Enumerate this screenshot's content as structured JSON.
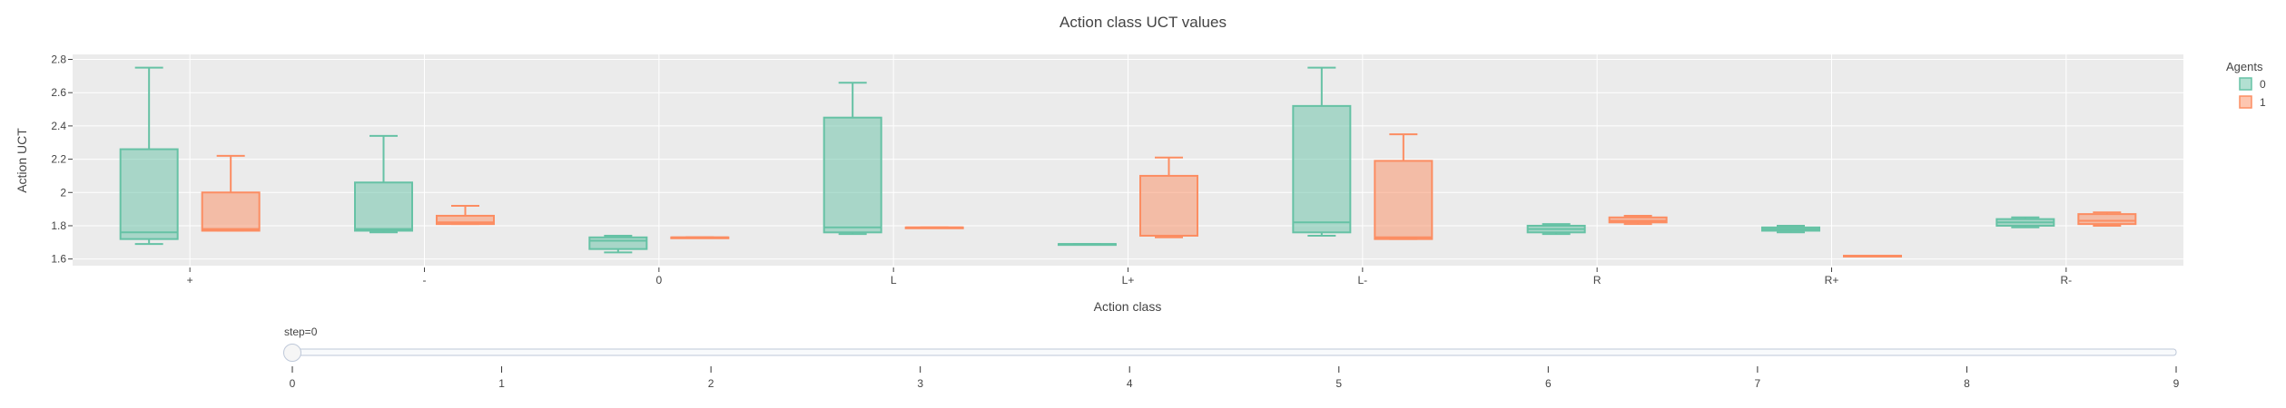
{
  "chart_data": {
    "type": "box",
    "title": "Action class UCT values",
    "xlabel": "Action class",
    "ylabel": "Action UCT",
    "ylim": [
      1.56,
      2.83
    ],
    "yticks": [
      1.6,
      1.8,
      2,
      2.2,
      2.4,
      2.6,
      2.8
    ],
    "ytick_labels": [
      "1.6",
      "1.8",
      "2",
      "2.2",
      "2.4",
      "2.6",
      "2.8"
    ],
    "categories": [
      "+",
      "-",
      "0",
      "L",
      "L+",
      "L-",
      "R",
      "R+",
      "R-"
    ],
    "grid": true,
    "legend": {
      "title": "Agents",
      "position": "top-right"
    },
    "series": [
      {
        "name": "0",
        "color": "#66c2a5",
        "boxes": [
          {
            "min": 1.69,
            "q1": 1.72,
            "median": 1.76,
            "q3": 2.26,
            "max": 2.75
          },
          {
            "min": 1.76,
            "q1": 1.77,
            "median": 1.78,
            "q3": 2.06,
            "max": 2.34
          },
          {
            "min": 1.64,
            "q1": 1.66,
            "median": 1.71,
            "q3": 1.73,
            "max": 1.74
          },
          {
            "min": 1.75,
            "q1": 1.76,
            "median": 1.79,
            "q3": 2.45,
            "max": 2.66
          },
          {
            "min": 1.69,
            "q1": 1.69,
            "median": 1.69,
            "q3": 1.69,
            "max": 1.69
          },
          {
            "min": 1.74,
            "q1": 1.76,
            "median": 1.82,
            "q3": 2.52,
            "max": 2.75
          },
          {
            "min": 1.75,
            "q1": 1.76,
            "median": 1.78,
            "q3": 1.8,
            "max": 1.81
          },
          {
            "min": 1.76,
            "q1": 1.77,
            "median": 1.78,
            "q3": 1.79,
            "max": 1.8
          },
          {
            "min": 1.79,
            "q1": 1.8,
            "median": 1.82,
            "q3": 1.84,
            "max": 1.85
          }
        ]
      },
      {
        "name": "1",
        "color": "#fc8d62",
        "boxes": [
          {
            "min": 1.77,
            "q1": 1.77,
            "median": 1.78,
            "q3": 2.0,
            "max": 2.22
          },
          {
            "min": 1.81,
            "q1": 1.81,
            "median": 1.82,
            "q3": 1.86,
            "max": 1.92
          },
          {
            "min": 1.73,
            "q1": 1.73,
            "median": 1.73,
            "q3": 1.73,
            "max": 1.73
          },
          {
            "min": 1.79,
            "q1": 1.79,
            "median": 1.79,
            "q3": 1.79,
            "max": 1.79
          },
          {
            "min": 1.73,
            "q1": 1.74,
            "median": 1.74,
            "q3": 2.1,
            "max": 2.21
          },
          {
            "min": 1.72,
            "q1": 1.72,
            "median": 1.73,
            "q3": 2.19,
            "max": 2.35
          },
          {
            "min": 1.81,
            "q1": 1.82,
            "median": 1.83,
            "q3": 1.85,
            "max": 1.86
          },
          {
            "min": 1.62,
            "q1": 1.62,
            "median": 1.62,
            "q3": 1.62,
            "max": 1.62
          },
          {
            "min": 1.8,
            "q1": 1.81,
            "median": 1.83,
            "q3": 1.87,
            "max": 1.88
          }
        ]
      }
    ]
  },
  "slider": {
    "current_label": "step=0",
    "value": 0,
    "steps": [
      "0",
      "1",
      "2",
      "3",
      "4",
      "5",
      "6",
      "7",
      "8",
      "9"
    ]
  }
}
